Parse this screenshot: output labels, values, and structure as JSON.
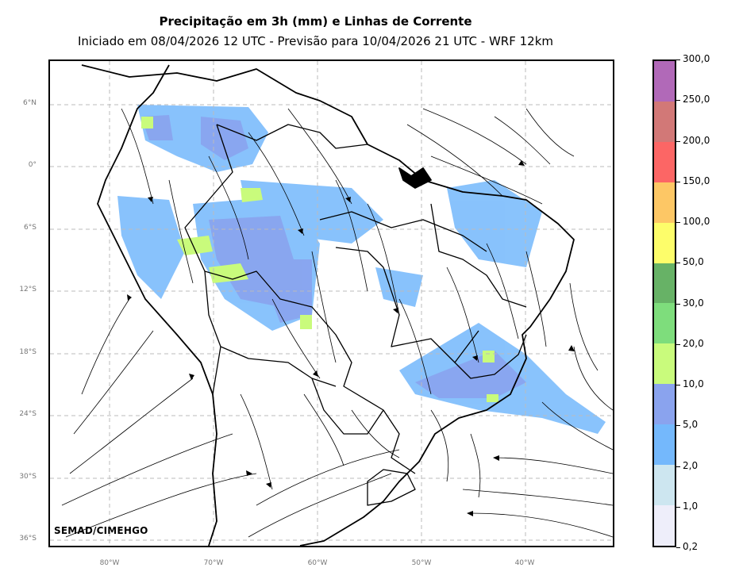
{
  "title": "Precipitação em 3h (mm) e Linhas de Corrente",
  "subtitle": "Iniciado em 08/04/2026 12 UTC - Previsão para 10/04/2026 21 UTC - WRF 12km",
  "credit": "SEMAD/CIMEHGO",
  "lat_labels": [
    "6°N",
    "0°",
    "6°S",
    "12°S",
    "18°S",
    "24°S",
    "30°S",
    "36°S"
  ],
  "lon_labels": [
    "80°W",
    "70°W",
    "60°W",
    "50°W",
    "40°W"
  ],
  "colorbar": {
    "labels": [
      "0,2",
      "1,0",
      "2,0",
      "5,0",
      "10,0",
      "20,0",
      "30,0",
      "50,0",
      "100,0",
      "150,0",
      "200,0",
      "250,0",
      "300,0"
    ],
    "colors": [
      "#eeeefa",
      "#cde6f0",
      "#74b8fc",
      "#8aa3ee",
      "#c9fb7c",
      "#7edd7c",
      "#67b266",
      "#fdfd6a",
      "#fdc765",
      "#fc6665",
      "#d27877",
      "#b169b8"
    ]
  },
  "colors": {
    "rain_light": "#74b8fc",
    "rain_medium": "#8aa3ee",
    "rain_heavy": "#c9fb7c",
    "coast": "#000000",
    "grid": "#bbbbbb"
  }
}
